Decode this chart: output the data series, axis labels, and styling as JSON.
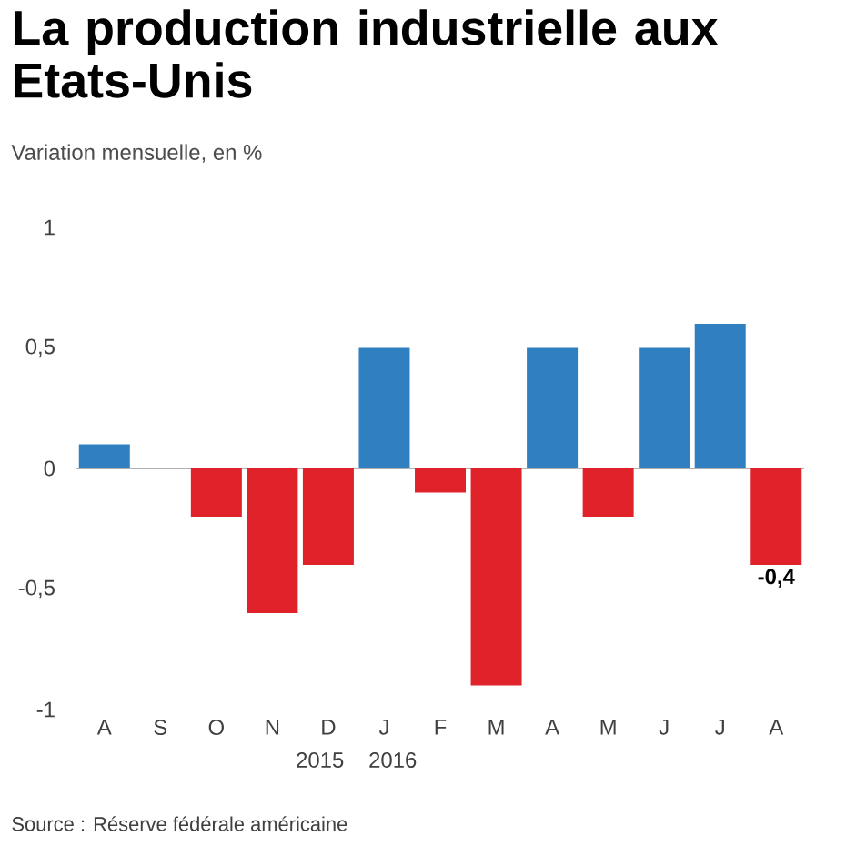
{
  "chart_data": {
    "type": "bar",
    "title": "La production industrielle aux Etats-Unis",
    "subtitle": "Variation mensuelle, en %",
    "categories": [
      "A",
      "S",
      "O",
      "N",
      "D",
      "J",
      "F",
      "M",
      "A",
      "M",
      "J",
      "J",
      "A"
    ],
    "values": [
      0.1,
      0,
      -0.2,
      -0.6,
      -0.4,
      0.5,
      -0.1,
      -0.9,
      0.5,
      -0.2,
      0.5,
      0.6,
      -0.4
    ],
    "colors": [
      "#2f7fc1",
      "#2f7fc1",
      "#e0232b",
      "#e0232b",
      "#e0232b",
      "#2f7fc1",
      "#e0232b",
      "#e0232b",
      "#2f7fc1",
      "#e0232b",
      "#2f7fc1",
      "#2f7fc1",
      "#e0232b"
    ],
    "value_labels": [
      null,
      null,
      null,
      null,
      null,
      null,
      null,
      null,
      null,
      null,
      null,
      null,
      "-0,4"
    ],
    "ylim": [
      -1,
      1
    ],
    "yticks": [
      {
        "value": -1,
        "label": "-1"
      },
      {
        "value": -0.5,
        "label": "-0,5"
      },
      0,
      {
        "value": 0.5,
        "label": "0,5"
      },
      1
    ],
    "annotations": [
      "2015",
      "2016",
      "Source : Réserve fédérale américaine"
    ]
  }
}
